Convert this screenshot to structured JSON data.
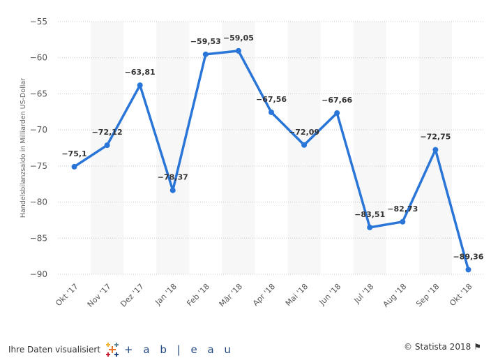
{
  "chart_data": {
    "type": "line",
    "title": "",
    "xlabel": "",
    "ylabel": "Handelsbilanzsaldo in Milliarden US-Dollar",
    "categories": [
      "Okt '17",
      "Nov '17",
      "Dez '17",
      "Jan '18",
      "Feb '18",
      "Mär '18",
      "Apr '18",
      "Mai '18",
      "Jun '18",
      "Jul '18",
      "Aug '18",
      "Sep '18",
      "Okt '18"
    ],
    "series": [
      {
        "name": "Handelsbilanzsaldo",
        "values": [
          -75.1,
          -72.12,
          -63.81,
          -78.37,
          -59.53,
          -59.05,
          -67.56,
          -72.09,
          -67.66,
          -83.51,
          -82.73,
          -72.75,
          -89.36
        ]
      }
    ],
    "data_labels": [
      "−75,1",
      "−72,12",
      "−63,81",
      "−78,37",
      "−59,53",
      "−59,05",
      "−67,56",
      "−72,09",
      "−67,66",
      "−83,51",
      "−82,73",
      "−72,75",
      "−89,36"
    ],
    "ylim": [
      -90,
      -55
    ],
    "yticks": [
      -55,
      -60,
      -65,
      -70,
      -75,
      -80,
      -85,
      -90
    ],
    "ytick_labels": [
      "−55",
      "−60",
      "−65",
      "−70",
      "−75",
      "−80",
      "−85",
      "−90"
    ],
    "grid": true,
    "legend": "none",
    "colors": {
      "line": "#2a75d8",
      "band": "#f7f7f7",
      "grid": "#c8c8c8"
    }
  },
  "footer": {
    "left_text": "Ihre Daten visualisiert",
    "logo_text": "+ a b | e a u",
    "right_text": "© Statista 2018"
  }
}
